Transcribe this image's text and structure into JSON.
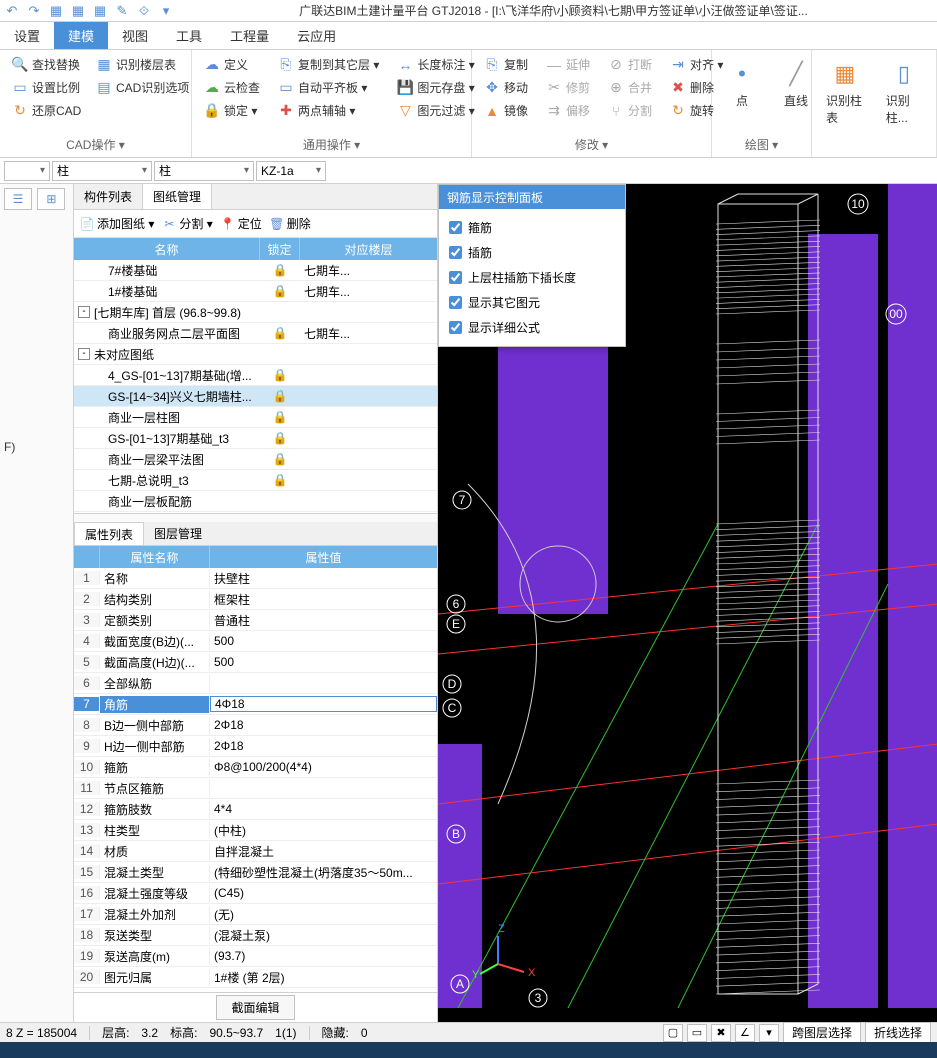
{
  "titlebar": {
    "title": "广联达BIM土建计量平台 GTJ2018 - [I:\\飞洋华府\\小顾资料\\七期\\甲方签证单\\小汪做签证单\\签证..."
  },
  "tabs": [
    "设置",
    "建模",
    "视图",
    "工具",
    "工程量",
    "云应用"
  ],
  "active_tab": 1,
  "ribbon": {
    "g1": {
      "label": "CAD操作 ▾",
      "items": [
        "查找替换",
        "识别楼层表",
        "设置比例",
        "CAD识别选项",
        "还原CAD"
      ]
    },
    "g2": {
      "label": "通用操作 ▾",
      "items": [
        "定义",
        "云检查",
        "锁定 ▾",
        "复制到其它层 ▾",
        "自动平齐板 ▾",
        "两点辅轴 ▾",
        "长度标注 ▾",
        "图元存盘 ▾",
        "图元过滤 ▾"
      ]
    },
    "g3": {
      "label": "修改 ▾",
      "items": [
        "复制",
        "移动",
        "镜像",
        "延伸",
        "修剪",
        "偏移",
        "打断",
        "合并",
        "分割",
        "对齐 ▾",
        "删除",
        "旋转"
      ]
    },
    "g4": {
      "label": "绘图 ▾",
      "items": [
        "点",
        "直线"
      ]
    },
    "g5": {
      "items": [
        "识别柱表",
        "识别柱..."
      ]
    }
  },
  "selectors": {
    "s1": "",
    "s2": "柱",
    "s3": "柱",
    "s4": "KZ-1a"
  },
  "left_f": "F)",
  "mid_tabs": [
    "构件列表",
    "图纸管理"
  ],
  "mid_toolbar": [
    "添加图纸 ▾",
    "分割 ▾",
    "定位",
    "删除"
  ],
  "tree_head": {
    "c1": "名称",
    "c2": "锁定",
    "c3": "对应楼层"
  },
  "tree_rows": [
    {
      "indent": 2,
      "name": "7#楼基础",
      "lock": "🔒",
      "floor": "七期车...",
      "sel": false
    },
    {
      "indent": 2,
      "name": "1#楼基础",
      "lock": "🔒",
      "floor": "七期车...",
      "sel": false
    },
    {
      "indent": 0,
      "toggle": "-",
      "name": "[七期车库] 首层 (96.8~99.8)",
      "lock": "",
      "floor": "",
      "sel": false
    },
    {
      "indent": 2,
      "name": "商业服务网点二层平面图",
      "lock": "🔒",
      "floor": "七期车...",
      "sel": false
    },
    {
      "indent": 0,
      "toggle": "-",
      "name": "未对应图纸",
      "lock": "",
      "floor": "",
      "sel": false
    },
    {
      "indent": 2,
      "name": "4_GS-[01~13]7期基础(增...",
      "lock": "🔒",
      "floor": "",
      "sel": false
    },
    {
      "indent": 2,
      "name": "GS-[14~34]兴义七期墙柱...",
      "lock": "🔒",
      "floor": "",
      "sel": true
    },
    {
      "indent": 2,
      "name": "商业一层柱图",
      "lock": "🔒",
      "floor": "",
      "sel": false
    },
    {
      "indent": 2,
      "name": "GS-[01~13]7期基础_t3",
      "lock": "🔒",
      "floor": "",
      "sel": false
    },
    {
      "indent": 2,
      "name": "商业一层梁平法图",
      "lock": "🔒",
      "floor": "",
      "sel": false
    },
    {
      "indent": 2,
      "name": "七期-总说明_t3",
      "lock": "🔒",
      "floor": "",
      "sel": false
    },
    {
      "indent": 2,
      "name": "商业一层板配筋",
      "lock": "",
      "floor": "",
      "sel": false
    }
  ],
  "prop_tabs": [
    "属性列表",
    "图层管理"
  ],
  "prop_head": {
    "name": "属性名称",
    "val": "属性值"
  },
  "prop_rows": [
    {
      "n": "1",
      "name": "名称",
      "val": "扶壁柱",
      "sel": false
    },
    {
      "n": "2",
      "name": "结构类别",
      "val": "框架柱",
      "sel": false
    },
    {
      "n": "3",
      "name": "定额类别",
      "val": "普通柱",
      "sel": false
    },
    {
      "n": "4",
      "name": "截面宽度(B边)(...",
      "val": "500",
      "sel": false
    },
    {
      "n": "5",
      "name": "截面高度(H边)(...",
      "val": "500",
      "sel": false
    },
    {
      "n": "6",
      "name": "全部纵筋",
      "val": "",
      "sel": false
    },
    {
      "n": "7",
      "name": "角筋",
      "val": "4Φ18",
      "sel": true
    },
    {
      "n": "8",
      "name": "B边一侧中部筋",
      "val": "2Φ18",
      "sel": false
    },
    {
      "n": "9",
      "name": "H边一侧中部筋",
      "val": "2Φ18",
      "sel": false
    },
    {
      "n": "10",
      "name": "箍筋",
      "val": "Φ8@100/200(4*4)",
      "sel": false
    },
    {
      "n": "11",
      "name": "节点区箍筋",
      "val": "",
      "sel": false
    },
    {
      "n": "12",
      "name": "箍筋肢数",
      "val": "4*4",
      "sel": false
    },
    {
      "n": "13",
      "name": "柱类型",
      "val": "(中柱)",
      "sel": false
    },
    {
      "n": "14",
      "name": "材质",
      "val": "自拌混凝土",
      "sel": false
    },
    {
      "n": "15",
      "name": "混凝土类型",
      "val": "(特细砂塑性混凝土(坍落度35～50m...",
      "sel": false
    },
    {
      "n": "16",
      "name": "混凝土强度等级",
      "val": "(C45)",
      "sel": false
    },
    {
      "n": "17",
      "name": "混凝土外加剂",
      "val": "(无)",
      "sel": false
    },
    {
      "n": "18",
      "name": "泵送类型",
      "val": "(混凝土泵)",
      "sel": false
    },
    {
      "n": "19",
      "name": "泵送高度(m)",
      "val": "(93.7)",
      "sel": false
    },
    {
      "n": "20",
      "name": "图元归属",
      "val": "1#楼 (第 2层)",
      "sel": false
    }
  ],
  "prop_footer_btn": "截面编辑",
  "rebar_panel": {
    "title": "钢筋显示控制面板",
    "items": [
      "箍筋",
      "插筋",
      "上层柱插筋下插长度",
      "显示其它图元",
      "显示详细公式"
    ]
  },
  "viewport": {
    "bg": "#000000",
    "column_fill": "#7030d0",
    "column_stroke": "#9060ff",
    "grid_color_red": "#ff3030",
    "grid_color_green": "#30c030",
    "arc_color": "#d0d0d0",
    "wire_color": "#e0e0e0",
    "axis_labels": [
      "10",
      "00",
      "7",
      "6",
      "E",
      "D",
      "C",
      "B",
      "3",
      "A",
      "3"
    ],
    "axis_z": "Z",
    "axis_x": "X",
    "axis_y": "Y"
  },
  "status": {
    "coord": "8 Z = 185004",
    "floor_h_label": "层高:",
    "floor_h": "3.2",
    "elev_label": "标高:",
    "elev": "90.5~93.7",
    "sel": "1(1)",
    "hide_label": "隐藏:",
    "hide": "0",
    "btn1": "跨图层选择",
    "btn2": "折线选择"
  }
}
